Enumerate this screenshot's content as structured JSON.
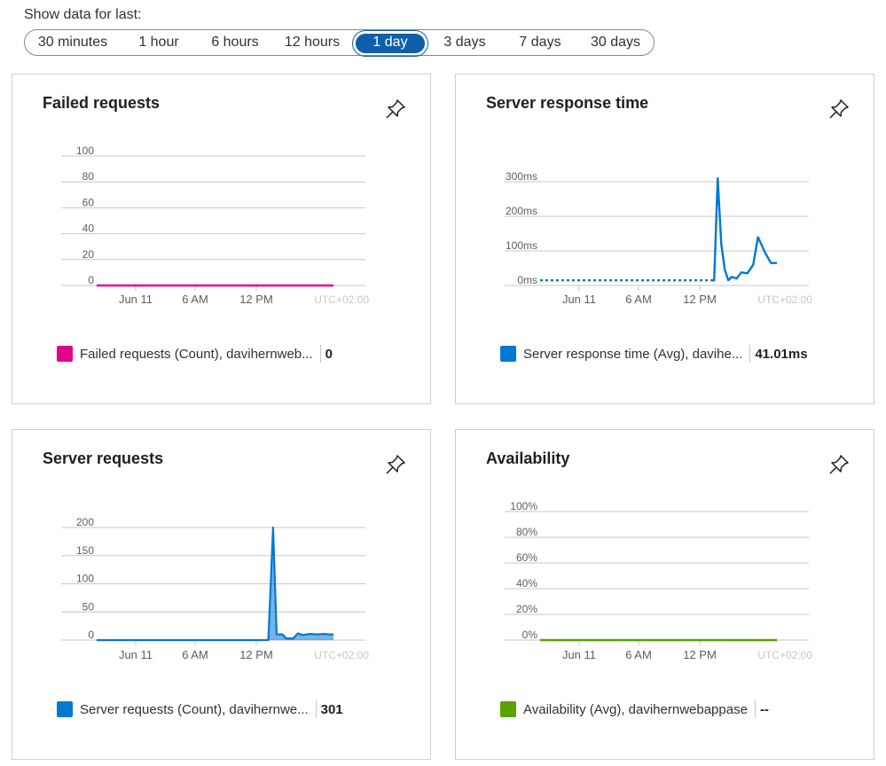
{
  "range": {
    "label": "Show data for last:",
    "options": [
      "30 minutes",
      "1 hour",
      "6 hours",
      "12 hours",
      "1 day",
      "3 days",
      "7 days",
      "30 days"
    ],
    "selected": "1 day"
  },
  "x_ticks": [
    "Jun 11",
    "6 AM",
    "12 PM"
  ],
  "timezone": "UTC+02:00",
  "pin_icon": "pin-icon",
  "panels": {
    "failed": {
      "title": "Failed requests",
      "legend": "Failed requests (Count), davihernweb...",
      "value": "0",
      "color": "#e3008c"
    },
    "response": {
      "title": "Server response time",
      "legend": "Server response time (Avg), davihe...",
      "value": "41.01ms",
      "color": "#0078d4"
    },
    "requests": {
      "title": "Server requests",
      "legend": "Server requests (Count), davihernwe...",
      "value": "301",
      "color": "#0078d4"
    },
    "availability": {
      "title": "Availability",
      "legend": "Availability (Avg), davihernwebappase",
      "value": "--",
      "color": "#57a300"
    }
  },
  "chart_data": [
    {
      "type": "line",
      "id": "failed",
      "title": "Failed requests",
      "y_ticks": [
        "100",
        "80",
        "60",
        "40",
        "20",
        "0"
      ],
      "ylim": [
        0,
        100
      ],
      "x": [
        0,
        0.5,
        1
      ],
      "series": [
        {
          "name": "Failed requests (Count), davihernweb...",
          "values": [
            0,
            0,
            0
          ]
        }
      ]
    },
    {
      "type": "line",
      "id": "response",
      "title": "Server response time",
      "y_ticks": [
        "300ms",
        "200ms",
        "100ms",
        "0ms"
      ],
      "ylim": [
        0,
        300
      ],
      "dashed_until": 0.72,
      "x": [
        0,
        0.72,
        0.735,
        0.75,
        0.765,
        0.78,
        0.795,
        0.81,
        0.83,
        0.85,
        0.875,
        0.9,
        0.92,
        0.95,
        0.975,
        1.0
      ],
      "series": [
        {
          "name": "Server response time (Avg), davihe...",
          "values": [
            15,
            15,
            15,
            310,
            120,
            45,
            15,
            25,
            20,
            38,
            35,
            60,
            140,
            95,
            65,
            65
          ]
        }
      ]
    },
    {
      "type": "area",
      "id": "requests",
      "title": "Server requests",
      "y_ticks": [
        "200",
        "150",
        "100",
        "50",
        "0"
      ],
      "ylim": [
        0,
        200
      ],
      "x": [
        0,
        0.7,
        0.725,
        0.745,
        0.76,
        0.785,
        0.8,
        0.83,
        0.85,
        0.87,
        0.9,
        0.93,
        0.96,
        0.98,
        1.0
      ],
      "series": [
        {
          "name": "Server requests (Count), davihernwe...",
          "values": [
            0,
            0,
            0,
            200,
            10,
            10,
            3,
            3,
            12,
            9,
            11,
            10,
            11,
            10,
            10
          ]
        }
      ]
    },
    {
      "type": "line",
      "id": "availability",
      "title": "Availability",
      "y_ticks": [
        "100%",
        "80%",
        "60%",
        "40%",
        "20%",
        "0%"
      ],
      "ylim": [
        0,
        100
      ],
      "x": [
        0,
        1
      ],
      "series": [
        {
          "name": "Availability (Avg), davihernwebappase",
          "values": [
            0,
            0
          ]
        }
      ]
    }
  ]
}
